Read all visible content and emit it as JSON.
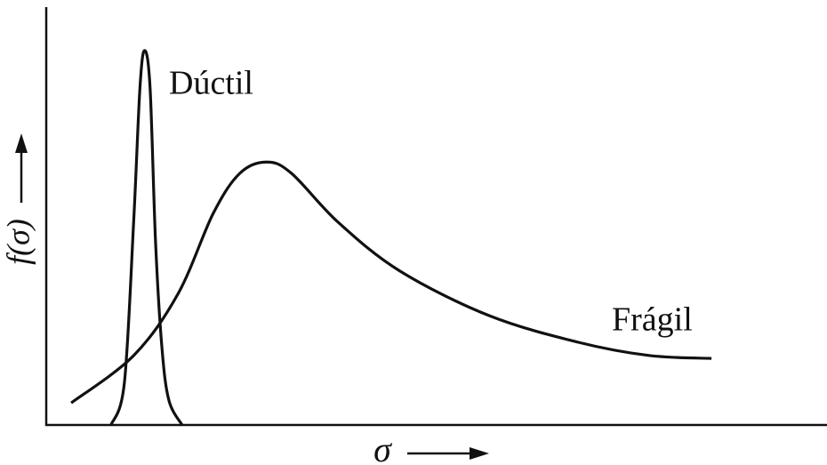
{
  "chart_data": {
    "type": "line",
    "x_label": "σ",
    "y_label": "f(σ)",
    "xlim": [
      0,
      100
    ],
    "ylim": [
      0,
      100
    ],
    "series": [
      {
        "name": "Dúctil",
        "color": "#111111",
        "x": [
          8.3,
          10.0,
          11.2,
          12.0,
          12.6,
          13.3,
          14.0,
          14.8,
          15.7,
          17.4
        ],
        "values": [
          0,
          10,
          49,
          81,
          90,
          81,
          44,
          19,
          6,
          0
        ]
      },
      {
        "name": "Frágil",
        "color": "#111111",
        "x": [
          3.2,
          11.2,
          16.9,
          21.4,
          24.8,
          28.2,
          31.4,
          37.4,
          45.3,
          56.7,
          68.1,
          77.2,
          85.2
        ],
        "values": [
          5.3,
          16.7,
          31.6,
          50.9,
          60.5,
          63.2,
          60.5,
          48.7,
          37,
          26.3,
          19.9,
          16.7,
          16
        ]
      }
    ]
  }
}
